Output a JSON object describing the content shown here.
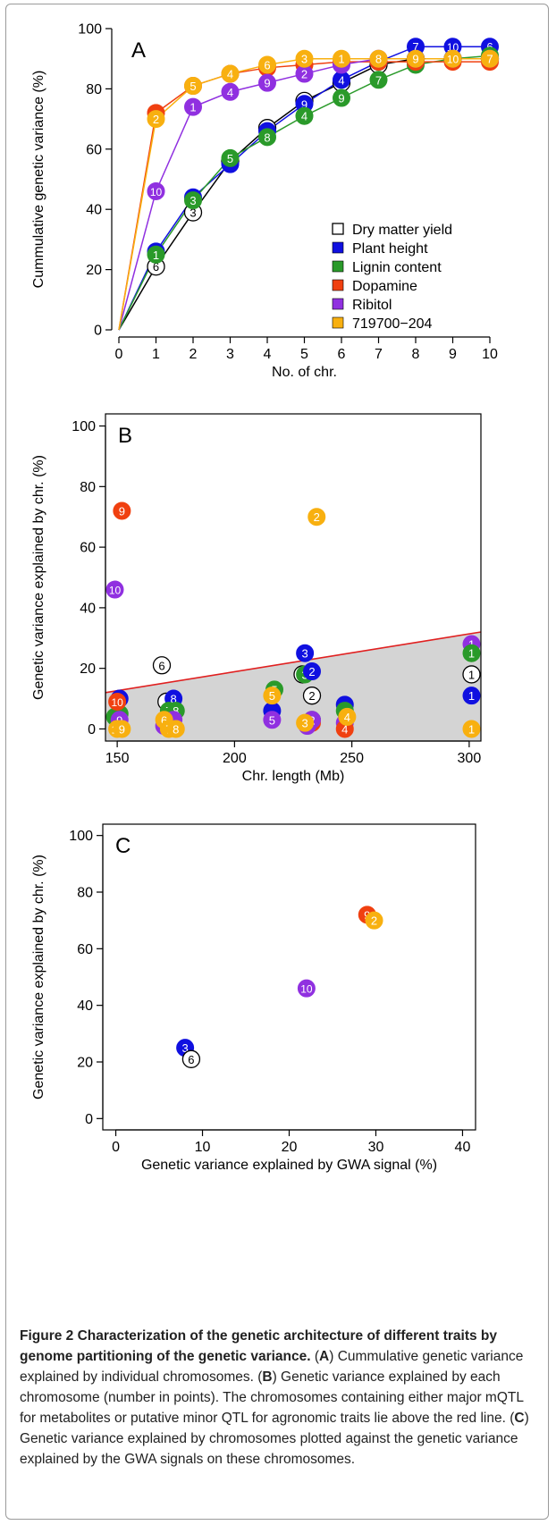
{
  "caption": {
    "title": "Figure 2 Characterization of the genetic architecture of different traits by genome partitioning of the genetic variance.",
    "body_1": " (",
    "ref_a": "A",
    "body_2": ") Cummulative genetic variance explained by individual chromosomes. (",
    "ref_b": "B",
    "body_3": ") Genetic variance explained by each chromosome (number in points). The chromosomes containing either major mQTL for metabolites or putative minor QTL for agronomic traits lie above the red line. (",
    "ref_c": "C",
    "body_4": ") Genetic variance explained by chromosomes plotted against the genetic variance explained by the GWA signals on these chromosomes."
  },
  "chart_data": [
    {
      "type": "line",
      "panel_label": "A",
      "xlabel": "No. of chr.",
      "ylabel": "Cummulative genetic variance (%)",
      "xlim": [
        0,
        10
      ],
      "ylim": [
        0,
        100
      ],
      "x_ticks": [
        0,
        1,
        2,
        3,
        4,
        5,
        6,
        7,
        8,
        9,
        10
      ],
      "y_ticks": [
        0,
        20,
        40,
        60,
        80,
        100
      ],
      "legend_position": "bottom-right",
      "series": [
        {
          "name": "Dry matter yield",
          "color": "#ffffff",
          "points": [
            [
              0,
              0,
              ""
            ],
            [
              1,
              21,
              "6"
            ],
            [
              2,
              39,
              "3"
            ],
            [
              3,
              56,
              ""
            ],
            [
              4,
              67,
              ""
            ],
            [
              5,
              76,
              ""
            ],
            [
              6,
              82,
              ""
            ],
            [
              7,
              88,
              ""
            ],
            [
              8,
              90,
              ""
            ],
            [
              9,
              90,
              ""
            ],
            [
              10,
              90,
              ""
            ]
          ]
        },
        {
          "name": "Plant height",
          "color": "#1010e0",
          "points": [
            [
              0,
              0,
              ""
            ],
            [
              1,
              26,
              ""
            ],
            [
              2,
              44,
              ""
            ],
            [
              3,
              55,
              ""
            ],
            [
              4,
              66,
              ""
            ],
            [
              5,
              75,
              "9"
            ],
            [
              6,
              83,
              "4"
            ],
            [
              7,
              89,
              ""
            ],
            [
              8,
              94,
              "7"
            ],
            [
              9,
              94,
              "10"
            ],
            [
              10,
              94,
              "6"
            ]
          ]
        },
        {
          "name": "Lignin content",
          "color": "#2a9a2a",
          "points": [
            [
              0,
              0,
              ""
            ],
            [
              1,
              25,
              "1"
            ],
            [
              2,
              43,
              "3"
            ],
            [
              3,
              57,
              "5"
            ],
            [
              4,
              64,
              "8"
            ],
            [
              5,
              71,
              "4"
            ],
            [
              6,
              77,
              "9"
            ],
            [
              7,
              83,
              "7"
            ],
            [
              8,
              88,
              ""
            ],
            [
              9,
              90,
              ""
            ],
            [
              10,
              91,
              ""
            ]
          ]
        },
        {
          "name": "Dopamine",
          "color": "#f04010",
          "points": [
            [
              0,
              0,
              ""
            ],
            [
              1,
              72,
              ""
            ],
            [
              2,
              81,
              ""
            ],
            [
              3,
              85,
              ""
            ],
            [
              4,
              87,
              ""
            ],
            [
              5,
              88,
              ""
            ],
            [
              6,
              89,
              ""
            ],
            [
              7,
              89,
              ""
            ],
            [
              8,
              89,
              ""
            ],
            [
              9,
              89,
              ""
            ],
            [
              10,
              89,
              ""
            ]
          ]
        },
        {
          "name": "Ribitol",
          "color": "#9030e0",
          "points": [
            [
              0,
              0,
              ""
            ],
            [
              1,
              46,
              "10"
            ],
            [
              2,
              74,
              "1"
            ],
            [
              3,
              79,
              "4"
            ],
            [
              4,
              82,
              "9"
            ],
            [
              5,
              85,
              "2"
            ],
            [
              6,
              88,
              ""
            ],
            [
              7,
              90,
              ""
            ],
            [
              8,
              90,
              ""
            ],
            [
              9,
              90,
              ""
            ],
            [
              10,
              90,
              ""
            ]
          ]
        },
        {
          "name": "719700−204",
          "color": "#f8b010",
          "points": [
            [
              0,
              0,
              ""
            ],
            [
              1,
              70,
              "2"
            ],
            [
              2,
              81,
              "5"
            ],
            [
              3,
              85,
              "4"
            ],
            [
              4,
              88,
              "6"
            ],
            [
              5,
              90,
              "3"
            ],
            [
              6,
              90,
              "1"
            ],
            [
              7,
              90,
              "8"
            ],
            [
              8,
              90,
              "9"
            ],
            [
              9,
              90,
              "10"
            ],
            [
              10,
              90,
              "7"
            ]
          ]
        }
      ]
    },
    {
      "type": "scatter",
      "panel_label": "B",
      "xlabel": "Chr. length (Mb)",
      "ylabel": "Genetic variance explained by chr. (%)",
      "xlim": [
        145,
        305
      ],
      "ylim": [
        -4,
        104
      ],
      "x_ticks": [
        150,
        200,
        250,
        300
      ],
      "y_ticks": [
        0,
        20,
        40,
        60,
        80,
        100
      ],
      "reference_line": {
        "x": [
          145,
          305
        ],
        "y": [
          12,
          32
        ],
        "color": "#e02020"
      },
      "points": [
        {
          "x": 151,
          "y": 10,
          "label": "",
          "color": "#1010e0"
        },
        {
          "x": 149,
          "y": 4,
          "label": "",
          "color": "#2a9a2a"
        },
        {
          "x": 151,
          "y": 5,
          "label": "",
          "color": "#2a9a2a"
        },
        {
          "x": 150,
          "y": 9,
          "label": "10",
          "color": "#f04010"
        },
        {
          "x": 151,
          "y": 3,
          "label": "9",
          "color": "#9030e0"
        },
        {
          "x": 150,
          "y": 0,
          "label": "10",
          "color": "#f8b010"
        },
        {
          "x": 152,
          "y": 0,
          "label": "9",
          "color": "#f8b010"
        },
        {
          "x": 152,
          "y": 72,
          "label": "9",
          "color": "#f04010"
        },
        {
          "x": 149,
          "y": 46,
          "label": "10",
          "color": "#9030e0"
        },
        {
          "x": 169,
          "y": 21,
          "label": "6",
          "color": "#ffffff"
        },
        {
          "x": 171,
          "y": 9,
          "label": "",
          "color": "#ffffff"
        },
        {
          "x": 174,
          "y": 10,
          "label": "8",
          "color": "#1010e0"
        },
        {
          "x": 172,
          "y": 6,
          "label": "7",
          "color": "#2a9a2a"
        },
        {
          "x": 175,
          "y": 6,
          "label": "8",
          "color": "#2a9a2a"
        },
        {
          "x": 172,
          "y": 2,
          "label": "",
          "color": "#f04010"
        },
        {
          "x": 174,
          "y": 3,
          "label": "",
          "color": "#9030e0"
        },
        {
          "x": 170,
          "y": 1,
          "label": "",
          "color": "#9030e0"
        },
        {
          "x": 170,
          "y": 3,
          "label": "6",
          "color": "#f8b010"
        },
        {
          "x": 172,
          "y": 0,
          "label": "7",
          "color": "#f8b010"
        },
        {
          "x": 175,
          "y": 0,
          "label": "8",
          "color": "#f8b010"
        },
        {
          "x": 217,
          "y": 13,
          "label": "5",
          "color": "#2a9a2a"
        },
        {
          "x": 216,
          "y": 6,
          "label": "",
          "color": "#1010e0"
        },
        {
          "x": 216,
          "y": 11,
          "label": "5",
          "color": "#f8b010"
        },
        {
          "x": 216,
          "y": 3,
          "label": "5",
          "color": "#9030e0"
        },
        {
          "x": 230,
          "y": 25,
          "label": "3",
          "color": "#1010e0"
        },
        {
          "x": 229,
          "y": 18,
          "label": "",
          "color": "#ffffff"
        },
        {
          "x": 230,
          "y": 18,
          "label": "3",
          "color": "#2a9a2a"
        },
        {
          "x": 233,
          "y": 19,
          "label": "2",
          "color": "#1010e0"
        },
        {
          "x": 233,
          "y": 11,
          "label": "2",
          "color": "#ffffff"
        },
        {
          "x": 235,
          "y": 70,
          "label": "2",
          "color": "#f8b010"
        },
        {
          "x": 233,
          "y": 3,
          "label": "",
          "color": "#2a9a2a"
        },
        {
          "x": 233,
          "y": 2,
          "label": "2",
          "color": "#f04010"
        },
        {
          "x": 231,
          "y": 1,
          "label": "",
          "color": "#9030e0"
        },
        {
          "x": 233,
          "y": 3,
          "label": "2",
          "color": "#9030e0"
        },
        {
          "x": 230,
          "y": 2,
          "label": "3",
          "color": "#f8b010"
        },
        {
          "x": 247,
          "y": 8,
          "label": "",
          "color": "#1010e0"
        },
        {
          "x": 247,
          "y": 6,
          "label": "",
          "color": "#2a9a2a"
        },
        {
          "x": 247,
          "y": 2,
          "label": "",
          "color": "#9030e0"
        },
        {
          "x": 247,
          "y": 0,
          "label": "4",
          "color": "#f04010"
        },
        {
          "x": 248,
          "y": 4,
          "label": "4",
          "color": "#f8b010"
        },
        {
          "x": 301,
          "y": 28,
          "label": "1",
          "color": "#9030e0"
        },
        {
          "x": 301,
          "y": 25,
          "label": "1",
          "color": "#2a9a2a"
        },
        {
          "x": 301,
          "y": 18,
          "label": "1",
          "color": "#ffffff"
        },
        {
          "x": 301,
          "y": 11,
          "label": "1",
          "color": "#1010e0"
        },
        {
          "x": 301,
          "y": 0,
          "label": "1",
          "color": "#f8b010"
        }
      ]
    },
    {
      "type": "scatter",
      "panel_label": "C",
      "xlabel": "Genetic variance explained by GWA signal (%)",
      "ylabel": "Genetic variance explained by chr. (%)",
      "xlim": [
        -1.5,
        41.5
      ],
      "ylim": [
        -4,
        104
      ],
      "x_ticks": [
        0,
        10,
        20,
        30,
        40
      ],
      "y_ticks": [
        0,
        20,
        40,
        60,
        80,
        100
      ],
      "points": [
        {
          "x": 8,
          "y": 25,
          "label": "3",
          "color": "#1010e0"
        },
        {
          "x": 8.7,
          "y": 21,
          "label": "6",
          "color": "#ffffff"
        },
        {
          "x": 22,
          "y": 46,
          "label": "10",
          "color": "#9030e0"
        },
        {
          "x": 29,
          "y": 72,
          "label": "9",
          "color": "#f04010"
        },
        {
          "x": 29.8,
          "y": 70,
          "label": "2",
          "color": "#f8b010"
        }
      ]
    }
  ]
}
